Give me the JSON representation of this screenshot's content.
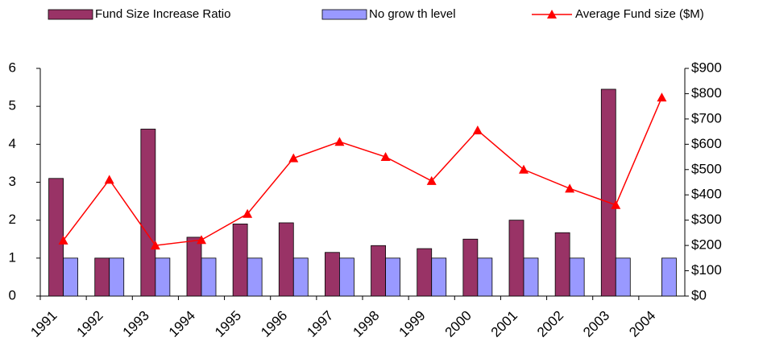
{
  "chart_data": {
    "type": "bar",
    "categories": [
      "1991",
      "1992",
      "1993",
      "1994",
      "1995",
      "1996",
      "1997",
      "1998",
      "1999",
      "2000",
      "2001",
      "2002",
      "2003",
      "2004"
    ],
    "series": [
      {
        "name": "Fund Size Increase Ratio",
        "color": "#993366",
        "type": "bar",
        "values": [
          3.1,
          1.0,
          4.4,
          1.55,
          1.9,
          1.93,
          1.15,
          1.33,
          1.25,
          1.5,
          2.0,
          1.67,
          5.45,
          null
        ]
      },
      {
        "name": "No grow th level",
        "color": "#9999ff",
        "type": "bar",
        "values": [
          1,
          1,
          1,
          1,
          1,
          1,
          1,
          1,
          1,
          1,
          1,
          1,
          1,
          1
        ]
      },
      {
        "name": "Average Fund size ($M)",
        "color": "#ff0000",
        "type": "line",
        "axis": "y2",
        "values": [
          220,
          460,
          200,
          222,
          325,
          545,
          610,
          550,
          455,
          655,
          500,
          425,
          360,
          785
        ]
      }
    ],
    "ylim": [
      0,
      6
    ],
    "yticks": [
      0,
      1,
      2,
      3,
      4,
      5,
      6
    ],
    "y2lim": [
      0,
      900
    ],
    "y2ticks": [
      {
        "value": 0,
        "label": "$0"
      },
      {
        "value": 100,
        "label": "$100"
      },
      {
        "value": 200,
        "label": "$200"
      },
      {
        "value": 300,
        "label": "$300"
      },
      {
        "value": 400,
        "label": "$400"
      },
      {
        "value": 500,
        "label": "$500"
      },
      {
        "value": 600,
        "label": "$600"
      },
      {
        "value": 700,
        "label": "$700"
      },
      {
        "value": 800,
        "label": "$800"
      },
      {
        "value": 900,
        "label": "$900"
      }
    ],
    "grid": false,
    "legend": "top"
  }
}
